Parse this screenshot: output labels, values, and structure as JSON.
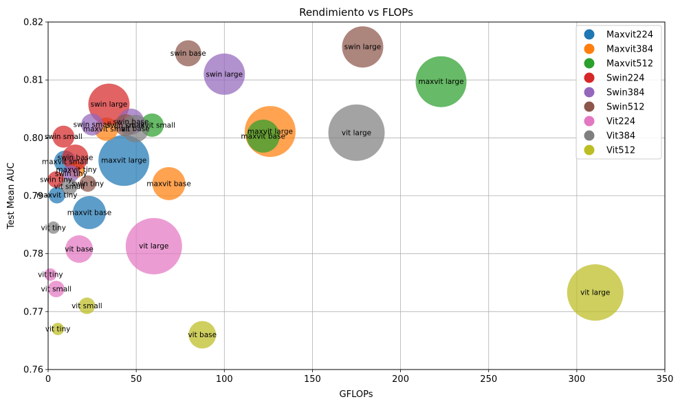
{
  "chart_data": {
    "type": "scatter",
    "title": "Rendimiento vs FLOPs",
    "xlabel": "GFLOPs",
    "ylabel": "Test Mean AUC",
    "xlim": [
      0,
      350
    ],
    "ylim": [
      0.76,
      0.82
    ],
    "x_ticks": [
      "0",
      "50",
      "100",
      "150",
      "200",
      "250",
      "300",
      "350"
    ],
    "y_ticks": [
      "0.76",
      "0.77",
      "0.78",
      "0.79",
      "0.80",
      "0.81",
      "0.82"
    ],
    "grid": true,
    "legend_position": "top-right",
    "series": [
      {
        "name": "Maxvit224",
        "color": "#1f77b4",
        "points": [
          {
            "label": "maxvit tiny",
            "x": 5.0,
            "y": 0.7901,
            "size": 12
          },
          {
            "label": "maxvit small",
            "x": 9.6,
            "y": 0.7959,
            "size": 16
          },
          {
            "label": "maxvit base",
            "x": 23.4,
            "y": 0.7871,
            "size": 24
          },
          {
            "label": "maxvit large",
            "x": 43.0,
            "y": 0.7961,
            "size": 37
          }
        ]
      },
      {
        "name": "Maxvit384",
        "color": "#ff7f0e",
        "points": [
          {
            "label": "maxvit tiny",
            "x": 16.0,
            "y": 0.7945,
            "size": 12
          },
          {
            "label": "maxvit small",
            "x": 33.0,
            "y": 0.8015,
            "size": 17
          },
          {
            "label": "maxvit base",
            "x": 68.5,
            "y": 0.7921,
            "size": 24
          },
          {
            "label": "maxvit large",
            "x": 126.0,
            "y": 0.8011,
            "size": 37
          }
        ]
      },
      {
        "name": "Maxvit512",
        "color": "#2ca02c",
        "points": [
          {
            "label": "maxvit small",
            "x": 59.0,
            "y": 0.8022,
            "size": 17
          },
          {
            "label": "maxvit base",
            "x": 122.0,
            "y": 0.8003,
            "size": 24
          },
          {
            "label": "maxvit large",
            "x": 223.0,
            "y": 0.8097,
            "size": 37
          }
        ]
      },
      {
        "name": "Swin224",
        "color": "#d62728",
        "points": [
          {
            "label": "swin tiny",
            "x": 4.5,
            "y": 0.7928,
            "size": 12
          },
          {
            "label": "swin small",
            "x": 8.7,
            "y": 0.8002,
            "size": 16
          },
          {
            "label": "swin base",
            "x": 15.4,
            "y": 0.7966,
            "size": 19
          },
          {
            "label": "swin large",
            "x": 34.5,
            "y": 0.8058,
            "size": 30
          }
        ]
      },
      {
        "name": "Swin384",
        "color": "#9467bd",
        "points": [
          {
            "label": "swin tiny",
            "x": 13.0,
            "y": 0.7938,
            "size": 12
          },
          {
            "label": "swin small",
            "x": 25.0,
            "y": 0.8023,
            "size": 16
          },
          {
            "label": "swin base",
            "x": 47.0,
            "y": 0.8028,
            "size": 19
          },
          {
            "label": "swin large",
            "x": 100.0,
            "y": 0.811,
            "size": 30
          }
        ]
      },
      {
        "name": "Swin512",
        "color": "#8c564b",
        "points": [
          {
            "label": "swin tiny",
            "x": 22.5,
            "y": 0.7921,
            "size": 12
          },
          {
            "label": "swin small",
            "x": 44.0,
            "y": 0.8022,
            "size": 16
          },
          {
            "label": "swin base",
            "x": 79.5,
            "y": 0.8146,
            "size": 19
          },
          {
            "label": "swin large",
            "x": 178.5,
            "y": 0.8157,
            "size": 30
          }
        ]
      },
      {
        "name": "Vit224",
        "color": "#e377c2",
        "points": [
          {
            "label": "vit tiny",
            "x": 1.3,
            "y": 0.7764,
            "size": 9
          },
          {
            "label": "vit small",
            "x": 4.6,
            "y": 0.7739,
            "size": 12
          },
          {
            "label": "vit base",
            "x": 17.6,
            "y": 0.7808,
            "size": 20
          },
          {
            "label": "vit large",
            "x": 60.0,
            "y": 0.7813,
            "size": 41
          }
        ]
      },
      {
        "name": "Vit384",
        "color": "#7f7f7f",
        "points": [
          {
            "label": "vit tiny",
            "x": 3.0,
            "y": 0.7845,
            "size": 9
          },
          {
            "label": "vit small",
            "x": 12.0,
            "y": 0.7916,
            "size": 12
          },
          {
            "label": "vit base",
            "x": 49.5,
            "y": 0.8016,
            "size": 20
          },
          {
            "label": "vit large",
            "x": 175.0,
            "y": 0.8009,
            "size": 41
          }
        ]
      },
      {
        "name": "Vit512",
        "color": "#bcbd22",
        "points": [
          {
            "label": "vit tiny",
            "x": 5.5,
            "y": 0.767,
            "size": 9
          },
          {
            "label": "vit small",
            "x": 22.0,
            "y": 0.771,
            "size": 12
          },
          {
            "label": "vit base",
            "x": 87.5,
            "y": 0.766,
            "size": 20
          },
          {
            "label": "vit large",
            "x": 310.5,
            "y": 0.7733,
            "size": 41
          }
        ]
      }
    ]
  }
}
